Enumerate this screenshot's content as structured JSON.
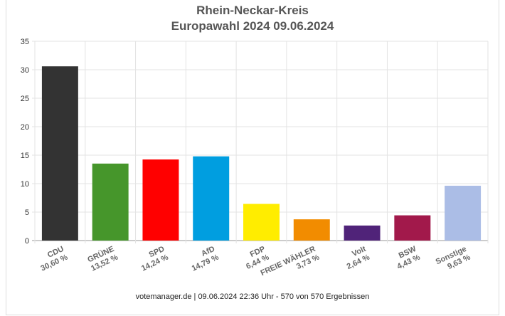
{
  "chart_data": {
    "type": "bar",
    "title": "Rhein-Neckar-Kreis",
    "subtitle": "Europawahl 2024 09.06.2024",
    "xlabel": "",
    "ylabel": "",
    "ylim": [
      0,
      35
    ],
    "yticks": [
      "0",
      "5",
      "10",
      "15",
      "20",
      "25",
      "30",
      "35"
    ],
    "grid": true,
    "categories": [
      "CDU",
      "GRÜNE",
      "SPD",
      "AfD",
      "FDP",
      "FREIE WÄHLER",
      "Volt",
      "BSW",
      "Sonstige"
    ],
    "values": [
      30.6,
      13.52,
      14.24,
      14.79,
      6.44,
      3.73,
      2.64,
      4.43,
      9.63
    ],
    "value_labels": [
      "30,60 %",
      "13,52 %",
      "14,24 %",
      "14,79 %",
      "6,44 %",
      "3,73 %",
      "2,64 %",
      "4,43 %",
      "9,63 %"
    ],
    "colors": [
      "#333333",
      "#46962b",
      "#ff0000",
      "#009ee0",
      "#ffed00",
      "#f28c00",
      "#502379",
      "#a2194b",
      "#abbde6"
    ]
  },
  "footer": "votemanager.de | 09.06.2024 22:36 Uhr - 570 von 570 Ergebnissen"
}
